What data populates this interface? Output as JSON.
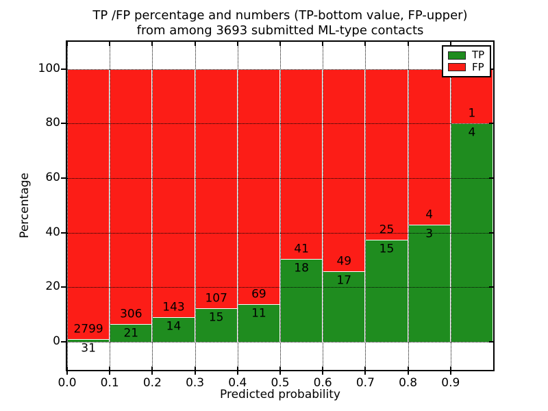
{
  "title": {
    "line1": "TP /FP percentage and numbers (TP-bottom value, FP-upper)",
    "line2": "from among 3693 submitted ML-type contacts"
  },
  "chart_data": {
    "type": "bar",
    "stacked": true,
    "normalized": "each bin stacked to 100%",
    "title": "TP /FP percentage and numbers (TP-bottom value, FP-upper) from among 3693 submitted ML-type contacts",
    "xlabel": "Predicted probability",
    "ylabel": "Percentage",
    "bin_edges": [
      0.0,
      0.1,
      0.2,
      0.3,
      0.4,
      0.5,
      0.6,
      0.7,
      0.8,
      0.9,
      1.0
    ],
    "x_tick_labels": [
      "0.0",
      "0.1",
      "0.2",
      "0.3",
      "0.4",
      "0.5",
      "0.6",
      "0.7",
      "0.8",
      "0.9"
    ],
    "y_ticks": [
      0,
      20,
      40,
      60,
      80,
      100
    ],
    "xlim": [
      0.0,
      1.0
    ],
    "ylim": [
      -10.3,
      110
    ],
    "grid": "dotted",
    "series": [
      {
        "name": "TP",
        "color": "#1f8c1f",
        "counts": [
          31,
          21,
          14,
          15,
          11,
          18,
          17,
          15,
          3,
          4
        ]
      },
      {
        "name": "FP",
        "color": "#fc1d17",
        "counts": [
          2799,
          306,
          143,
          107,
          69,
          41,
          49,
          25,
          4,
          1
        ]
      }
    ],
    "tp_percent_of_bin": [
      1.1,
      6.4,
      8.9,
      12.3,
      13.8,
      30.5,
      25.8,
      37.5,
      42.9,
      80.0
    ],
    "legend": {
      "position": "upper right",
      "entries": [
        {
          "label": "TP",
          "color": "#1f8c1f"
        },
        {
          "label": "FP",
          "color": "#fc1d17"
        }
      ]
    }
  }
}
